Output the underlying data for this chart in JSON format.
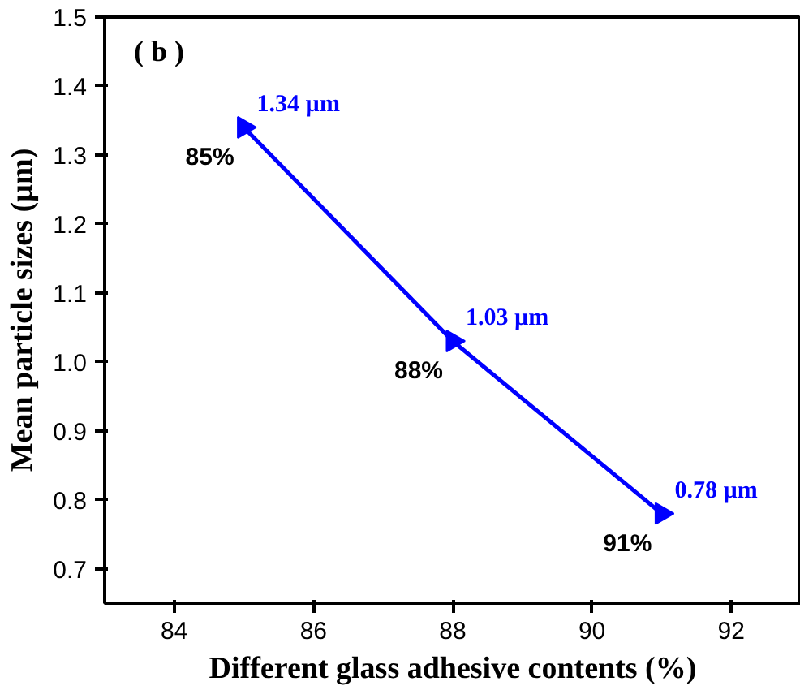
{
  "chart_data": {
    "type": "line",
    "xlabel": "Different glass adhesive contents (%)",
    "ylabel": "Mean particle sizes (µm)",
    "x": [
      85,
      88,
      91
    ],
    "series": [
      {
        "color": "#0000ff",
        "values": [
          1.34,
          1.03,
          0.78
        ],
        "value_labels": [
          "1.34 µm",
          "1.03 µm",
          "0.78 µm"
        ]
      }
    ],
    "marker": "triangle",
    "annotations": [
      "( b )",
      {
        "text": "85%",
        "x": 85,
        "y": 1.34
      },
      {
        "text": "88%",
        "x": 88,
        "y": 1.03
      },
      {
        "text": "91%",
        "x": 91,
        "y": 0.78
      }
    ],
    "xlim": [
      83,
      93
    ],
    "ylim": [
      0.65,
      1.5
    ],
    "xticks": [
      84,
      86,
      88,
      90,
      92
    ],
    "yticks": [
      0.7,
      0.8,
      0.9,
      {
        "value": 1.0,
        "label": "1.0"
      },
      1.1,
      1.2,
      1.3,
      1.4,
      1.5
    ]
  }
}
